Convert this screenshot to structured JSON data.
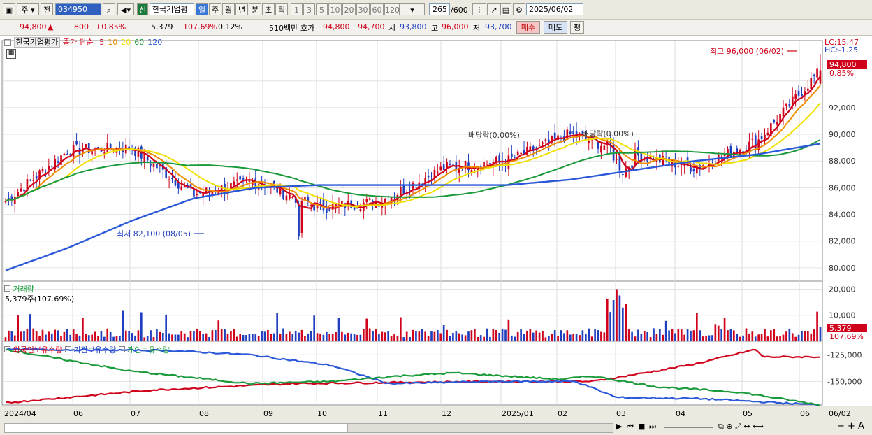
{
  "toolbar": {
    "period": "주",
    "prev_label": "전",
    "code": "034950",
    "stock_name": "한국기업평",
    "new_badge": "신",
    "periods": [
      "일",
      "주",
      "월",
      "년",
      "분",
      "초",
      "틱"
    ],
    "ticks": [
      "1",
      "3",
      "5",
      "10",
      "20",
      "30",
      "60",
      "120"
    ],
    "count": "265",
    "count_total": "/600",
    "date": "2025/06/02"
  },
  "summary": {
    "price": "94,800",
    "arrow": "▲",
    "change": "800",
    "change_pct": "+0.85%",
    "volume": "5,379",
    "volume_ratio": "107.69%",
    "turnover_pct": "0.12%",
    "amount": "510백만",
    "quote_label": "호가",
    "ask": "94,800",
    "bid": "94,700",
    "open_label": "시",
    "open": "93,800",
    "high_label": "고",
    "high": "96,000",
    "low_label": "저",
    "low": "93,700",
    "buy_label": "매수",
    "sell_label": "매도",
    "eval_label": "평"
  },
  "price_panel": {
    "name": "한국기업평가",
    "indicator": "종가 단순",
    "ma_periods": [
      "5",
      "10",
      "20",
      "60",
      "120"
    ],
    "ma_colors": [
      "#d0021b",
      "#f08c00",
      "#f0e000",
      "#1a9a3a",
      "#2a58d8"
    ],
    "lc_label": "LC:15.47",
    "hc_label": "HC:-1.25",
    "max_label": "최고 96,000 (06/02)",
    "min_label": "최저 82,100 (08/05)",
    "div_label_1": "배당락(0.00%)",
    "div_label_2": "배당락(0.00%)",
    "current_price": "94,800",
    "current_pct": "0.85%",
    "y_ticks": [
      "92,000",
      "90,000",
      "88,000",
      "86,000",
      "84,000",
      "82,000",
      "80,000"
    ]
  },
  "volume_panel": {
    "title": "거래량",
    "current": "5,379주(107.69%)",
    "y_ticks": [
      "20,000",
      "10,000"
    ],
    "current_value": "5,379",
    "current_pct": "107.69%"
  },
  "holding_panel": {
    "series": [
      "외국인보유수량",
      "기관보유수량",
      "개인보유수량"
    ],
    "y_ticks": [
      "-125,000",
      "-150,000"
    ]
  },
  "x_axis": {
    "labels": [
      "2024/04",
      "06",
      "07",
      "08",
      "09",
      "10",
      "11",
      "12",
      "2025/01",
      "02",
      "03",
      "04",
      "05",
      "06"
    ],
    "last_label": "06/02"
  },
  "chart_data": {
    "type": "candlestick",
    "period": "일",
    "date_range": [
      "2024/04",
      "2025/06/02"
    ],
    "ylim": [
      79000,
      96500
    ],
    "high": {
      "value": 96000,
      "date": "06/02"
    },
    "low": {
      "value": 82100,
      "date": "08/05"
    },
    "last": {
      "open": 93800,
      "high": 96000,
      "low": 93700,
      "close": 94800
    },
    "ma_series": [
      {
        "name": "5",
        "color": "#d0021b"
      },
      {
        "name": "10",
        "color": "#f08c00"
      },
      {
        "name": "20",
        "color": "#f0e000"
      },
      {
        "name": "60",
        "color": "#1a9a3a"
      },
      {
        "name": "120",
        "color": "#2a58d8"
      }
    ],
    "close_trend": {
      "x": [
        "2024/04",
        "06",
        "07",
        "08",
        "09",
        "10",
        "11",
        "12",
        "2025/01",
        "02",
        "03",
        "04",
        "05",
        "06"
      ],
      "values": [
        85000,
        88800,
        89000,
        85500,
        86500,
        84500,
        85000,
        87500,
        88000,
        90000,
        88500,
        87500,
        89500,
        94800
      ]
    },
    "ma120_trend": [
      79800,
      81500,
      83500,
      85200,
      86000,
      86200,
      86200,
      86200,
      86200,
      86600,
      87300,
      88000,
      88500,
      89300
    ],
    "volume": {
      "ylim": [
        0,
        22000
      ],
      "peak": 20000,
      "last": 5379
    },
    "holdings": [
      {
        "name": "외국인보유수량",
        "color": "#d0021b",
        "start": -170000,
        "end": -127000
      },
      {
        "name": "기관보유수량",
        "color": "#2a58d8",
        "start": -120000,
        "end": -170000
      },
      {
        "name": "개인보유수량",
        "color": "#1a9a3a",
        "start": -120000,
        "end": -170000
      }
    ]
  }
}
